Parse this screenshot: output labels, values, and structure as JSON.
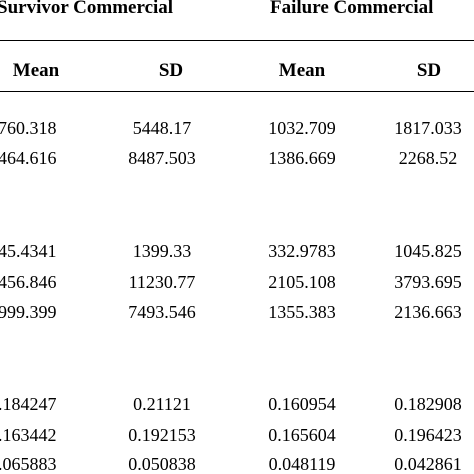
{
  "groups": [
    {
      "label": "Survivor Commercial"
    },
    {
      "label": "Failure Commercial"
    }
  ],
  "columns": [
    "Mean",
    "SD",
    "Mean",
    "SD"
  ],
  "rows": [
    [
      "760.318",
      "5448.17",
      "1032.709",
      "1817.033"
    ],
    [
      "464.616",
      "8487.503",
      "1386.669",
      "2268.52"
    ],
    [
      "45.4341",
      "1399.33",
      "332.9783",
      "1045.825"
    ],
    [
      "456.846",
      "11230.77",
      "2105.108",
      "3793.695"
    ],
    [
      "999.399",
      "7493.546",
      "1355.383",
      "2136.663"
    ],
    [
      ".184247",
      "0.21121",
      "0.160954",
      "0.182908"
    ],
    [
      ".163442",
      "0.192153",
      "0.165604",
      "0.196423"
    ],
    ".065883|0.050838|0.048119|0.042861"
  ]
}
